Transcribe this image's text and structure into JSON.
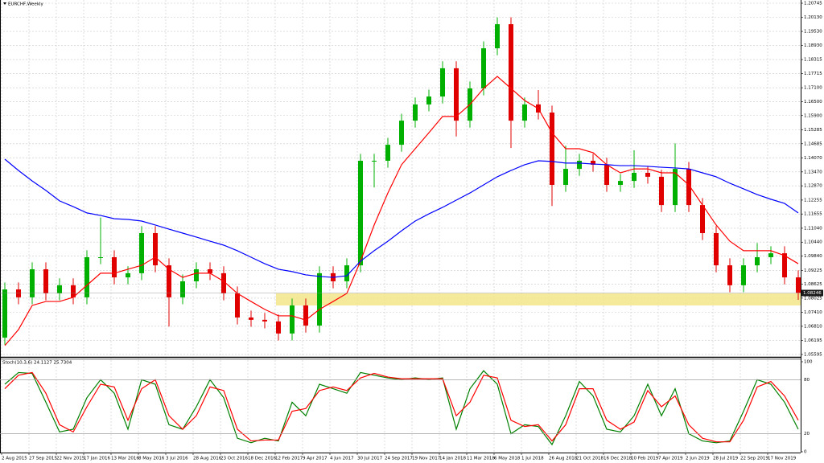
{
  "chart_data": [
    {
      "type": "candlestick",
      "title": "EURCHF,Weekly",
      "categories": [
        "2 Aug 2015",
        null,
        "27 Sep 2015",
        null,
        "22 Nov 2015",
        null,
        "17 Jan 2016",
        null,
        "13 Mar 2016",
        null,
        "8 May 2016",
        null,
        "3 Jul 2016",
        null,
        "28 Aug 2016",
        null,
        "23 Oct 2016",
        null,
        "18 Dec 2016",
        null,
        "12 Feb 2017",
        null,
        "9 Apr 2017",
        null,
        "4 Jun 2017",
        null,
        "30 Jul 2017",
        null,
        "24 Sep 2017",
        null,
        "19 Nov 2017",
        null,
        "14 Jan 2018",
        null,
        "11 Mar 2018",
        null,
        "6 May 2018",
        null,
        "1 Jul 2018",
        null,
        "26 Aug 2018",
        null,
        "21 Oct 2018",
        null,
        "16 Dec 2018",
        null,
        "10 Feb 2019",
        null,
        "7 Apr 2019",
        null,
        "2 Jun 2019",
        null,
        "28 Jul 2019",
        null,
        "22 Sep 2019",
        null,
        "17 Nov 2019",
        null,
        null
      ],
      "open": [
        1.0632,
        1.084,
        1.0806,
        1.0927,
        1.0823,
        1.0858,
        1.0806,
        1.0979,
        1.0979,
        1.0892,
        1.091,
        1.1083,
        1.0944,
        1.0806,
        1.0875,
        1.0927,
        1.091,
        1.0823,
        1.0719,
        1.0709,
        1.0702,
        1.065,
        1.0771,
        1.0684,
        1.091,
        1.0875,
        1.0944,
        1.1395,
        1.1395,
        1.1464,
        1.1568,
        1.1638,
        1.1672,
        1.1794,
        1.1568,
        1.1707,
        1.188,
        1.1984,
        1.1568,
        1.1638,
        1.1603,
        1.1291,
        1.136,
        1.1395,
        1.1378,
        1.1291,
        1.1308,
        1.1343,
        1.1326,
        1.1204,
        1.136,
        1.1204,
        1.1083,
        1.0944,
        1.0858,
        1.0944,
        1.0979,
        1.0996,
        1.0892
      ],
      "high": [
        1.087,
        1.087,
        1.0957,
        1.0957,
        1.0888,
        1.0888,
        1.1009,
        1.115,
        1.1009,
        1.094,
        1.1113,
        1.1113,
        1.0974,
        1.0905,
        1.0957,
        1.0957,
        1.094,
        1.0853,
        1.0749,
        1.0739,
        1.0732,
        1.0801,
        1.0801,
        1.094,
        1.094,
        1.0974,
        1.1425,
        1.1425,
        1.1494,
        1.1598,
        1.1668,
        1.1702,
        1.1824,
        1.1824,
        1.1737,
        1.191,
        1.2014,
        1.2014,
        1.1668,
        1.17,
        1.1633,
        1.146,
        1.1425,
        1.1425,
        1.1408,
        1.1338,
        1.144,
        1.1373,
        1.1356,
        1.147,
        1.139,
        1.1234,
        1.1113,
        1.0974,
        1.0974,
        1.104,
        1.1026,
        1.1026,
        1.0922
      ],
      "low": [
        1.0602,
        1.0776,
        1.0776,
        1.0793,
        1.0793,
        1.0776,
        1.0776,
        1.0949,
        1.0862,
        1.0862,
        1.088,
        1.0914,
        1.068,
        1.0776,
        1.0845,
        1.088,
        1.0793,
        1.0689,
        1.0679,
        1.0672,
        1.062,
        1.062,
        1.0654,
        1.0654,
        1.0845,
        1.0845,
        1.0914,
        1.128,
        1.1365,
        1.1434,
        1.1538,
        1.1608,
        1.1642,
        1.15,
        1.1538,
        1.1677,
        1.185,
        1.145,
        1.1538,
        1.1573,
        1.12,
        1.1261,
        1.133,
        1.1348,
        1.1261,
        1.1261,
        1.1278,
        1.1296,
        1.1174,
        1.1174,
        1.1174,
        1.1053,
        1.0914,
        1.0828,
        1.0828,
        1.0914,
        1.0949,
        1.0862,
        1.0795
      ],
      "close": [
        1.084,
        1.0806,
        1.0927,
        1.0823,
        1.0858,
        1.0806,
        1.0979,
        1.0979,
        1.0892,
        1.091,
        1.1083,
        1.0944,
        1.0806,
        1.0875,
        1.0927,
        1.091,
        1.0823,
        1.0719,
        1.0709,
        1.0702,
        1.065,
        1.0771,
        1.0684,
        1.091,
        1.0875,
        1.0944,
        1.1395,
        1.1395,
        1.1464,
        1.1568,
        1.1638,
        1.1672,
        1.1794,
        1.1568,
        1.1707,
        1.188,
        1.1984,
        1.1568,
        1.1638,
        1.1603,
        1.1291,
        1.136,
        1.1395,
        1.1378,
        1.1291,
        1.1308,
        1.1343,
        1.1326,
        1.1204,
        1.136,
        1.1204,
        1.1083,
        1.0944,
        1.0858,
        1.0944,
        1.0979,
        1.0996,
        1.0892,
        1.0825
      ],
      "up_color": "#00b000",
      "down_color": "#e00000",
      "series": [
        {
          "color": "#ff0000",
          "values": [
            1.0598,
            1.0667,
            1.0771,
            1.0788,
            1.0788,
            1.0806,
            1.0858,
            1.091,
            1.091,
            1.0927,
            1.0944,
            1.0979,
            1.0927,
            1.0892,
            1.091,
            1.091,
            1.0875,
            1.0823,
            1.0788,
            1.0754,
            1.0726,
            1.0726,
            1.0708,
            1.0754,
            1.0788,
            1.0823,
            1.0962,
            1.1118,
            1.1256,
            1.1378,
            1.1447,
            1.1516,
            1.1586,
            1.1586,
            1.1638,
            1.1707,
            1.1759,
            1.1707,
            1.1655,
            1.162,
            1.1516,
            1.1447,
            1.1447,
            1.143,
            1.1378,
            1.1343,
            1.136,
            1.136,
            1.1343,
            1.1343,
            1.1291,
            1.1204,
            1.1118,
            1.1048,
            1.1007,
            1.1007,
            1.1007,
            1.0986,
            1.0951
          ]
        },
        {
          "color": "#0000ff",
          "values": [
            1.1402,
            1.1353,
            1.1308,
            1.1267,
            1.1222,
            1.1197,
            1.117,
            1.1159,
            1.1145,
            1.1142,
            1.1135,
            1.1118,
            1.11,
            1.1083,
            1.1066,
            1.1048,
            1.1031,
            1.1007,
            1.0979,
            1.0951,
            1.0927,
            1.0917,
            1.0903,
            1.0896,
            1.0892,
            1.0899,
            1.0962,
            1.1007,
            1.1048,
            1.1093,
            1.1135,
            1.1166,
            1.1194,
            1.1225,
            1.1256,
            1.1291,
            1.1326,
            1.1353,
            1.1378,
            1.1395,
            1.1392,
            1.1385,
            1.1385,
            1.1381,
            1.1378,
            1.1374,
            1.1374,
            1.1371,
            1.1367,
            1.1364,
            1.136,
            1.1343,
            1.1326,
            1.1298,
            1.1274,
            1.1249,
            1.1229,
            1.1211,
            1.117
          ]
        }
      ],
      "last_price": 1.08246,
      "ylim": [
        1.05525,
        1.20884
      ],
      "yticks": [
        1.20745,
        {
          "value": 1.2013,
          "label": "1.20130"
        },
        {
          "value": 1.1953,
          "label": "1.19530"
        },
        {
          "value": 1.1893,
          "label": "1.18930"
        },
        1.18315,
        1.17715,
        {
          "value": 1.171,
          "label": "1.17100"
        },
        {
          "value": 1.165,
          "label": "1.16500"
        },
        {
          "value": 1.159,
          "label": "1.15900"
        },
        1.15285,
        1.14685,
        {
          "value": 1.1407,
          "label": "1.14070"
        },
        {
          "value": 1.1347,
          "label": "1.13470"
        },
        {
          "value": 1.1287,
          "label": "1.12870"
        },
        1.12255,
        1.11655,
        {
          "value": 1.1104,
          "label": "1.11040"
        },
        {
          "value": 1.1044,
          "label": "1.10440"
        },
        {
          "value": 1.0984,
          "label": "1.09840"
        },
        1.09225,
        1.08625,
        1.08025,
        {
          "value": 1.0741,
          "label": "1.07410"
        },
        {
          "value": 1.0681,
          "label": "1.06810"
        },
        1.06195,
        1.05595
      ],
      "grid": true
    },
    {
      "type": "line",
      "title": "Stoch(10,3,6) 24.1127 25.7304",
      "series": [
        {
          "color": "#008000",
          "values": [
            75,
            88,
            87,
            55,
            22,
            25,
            60,
            80,
            65,
            25,
            80,
            75,
            30,
            25,
            50,
            80,
            60,
            15,
            10,
            15,
            12,
            55,
            40,
            75,
            70,
            65,
            88,
            85,
            82,
            80,
            82,
            80,
            82,
            25,
            70,
            90,
            75,
            20,
            30,
            28,
            8,
            40,
            78,
            62,
            25,
            22,
            40,
            75,
            40,
            70,
            20,
            12,
            10,
            12,
            45,
            80,
            75,
            55,
            25
          ]
        },
        {
          "color": "#ff0000",
          "values": [
            70,
            85,
            88,
            65,
            30,
            22,
            50,
            75,
            72,
            35,
            70,
            80,
            40,
            25,
            40,
            72,
            68,
            25,
            12,
            13,
            13,
            45,
            48,
            68,
            72,
            68,
            82,
            87,
            83,
            81,
            81,
            81,
            81,
            40,
            55,
            85,
            82,
            35,
            28,
            30,
            12,
            30,
            70,
            70,
            35,
            25,
            33,
            68,
            50,
            62,
            30,
            15,
            11,
            11,
            35,
            72,
            78,
            62,
            35
          ]
        }
      ],
      "ylim": [
        0,
        100
      ],
      "yticks": [
        0,
        20,
        80,
        100
      ]
    }
  ]
}
